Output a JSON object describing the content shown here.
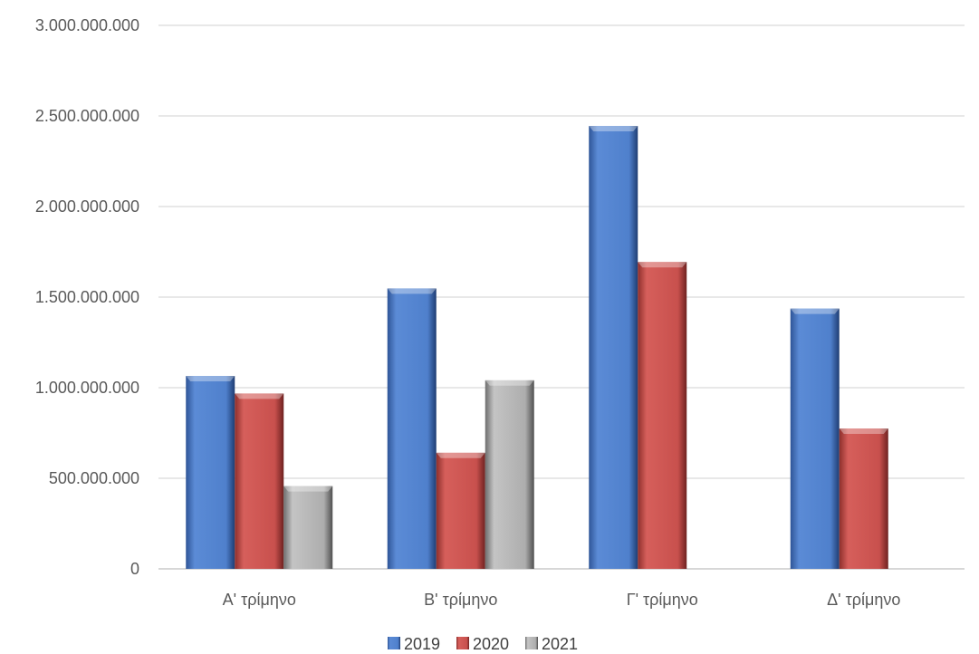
{
  "chart_data": {
    "type": "bar",
    "categories": [
      "Α' τρίμηνο",
      "Β' τρίμηνο",
      "Γ' τρίμηνο",
      "Δ' τρίμηνο"
    ],
    "series": [
      {
        "name": "2019",
        "color": "#4a7bc4",
        "values": [
          1065000000,
          1548000000,
          2445000000,
          1437000000
        ]
      },
      {
        "name": "2020",
        "color": "#c8504d",
        "values": [
          968000000,
          641000000,
          1694000000,
          775000000
        ]
      },
      {
        "name": "2021",
        "color": "#a6a6a6",
        "values": [
          457000000,
          1041000000,
          null,
          null
        ]
      }
    ],
    "ylim": [
      0,
      3000000000
    ],
    "yticks": [
      "0",
      "500.000.000",
      "1.000.000.000",
      "1.500.000.000",
      "2.000.000.000",
      "2.500.000.000",
      "3.000.000.000"
    ],
    "grid": true,
    "legend": "bottom"
  }
}
